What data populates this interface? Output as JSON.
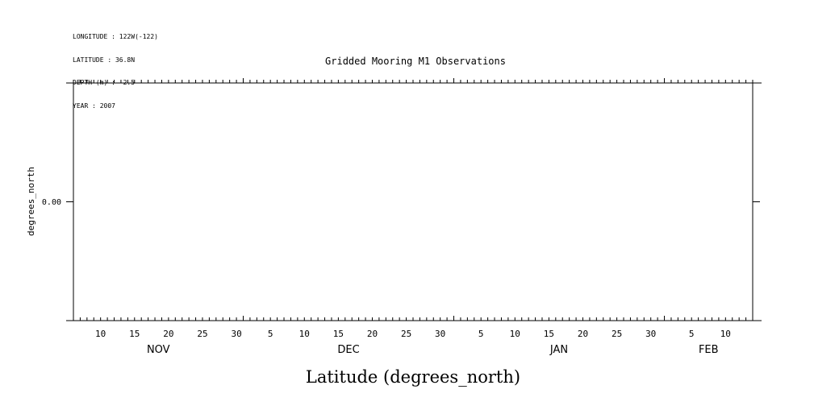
{
  "metadata_lines": {
    "longitude": "LONGITUDE : 122W(-122)",
    "latitude": "LATITUDE : 36.8N",
    "depth": "DEPTH (m) : -2.5",
    "year": "YEAR : 2007"
  },
  "chart_data": {
    "type": "line",
    "title": "Gridded Mooring M1 Observations",
    "ylabel": "degrees_north",
    "xlabel": "Latitude (degrees_north)",
    "y_tick_labels": [
      "0.00"
    ],
    "x_range": [
      "2007-11-06",
      "2008-02-14"
    ],
    "x_day_labels": [
      {
        "date": "2007-11-10",
        "label": "10"
      },
      {
        "date": "2007-11-15",
        "label": "15"
      },
      {
        "date": "2007-11-20",
        "label": "20"
      },
      {
        "date": "2007-11-25",
        "label": "25"
      },
      {
        "date": "2007-11-30",
        "label": "30"
      },
      {
        "date": "2007-12-05",
        "label": "5"
      },
      {
        "date": "2007-12-10",
        "label": "10"
      },
      {
        "date": "2007-12-15",
        "label": "15"
      },
      {
        "date": "2007-12-20",
        "label": "20"
      },
      {
        "date": "2007-12-25",
        "label": "25"
      },
      {
        "date": "2007-12-30",
        "label": "30"
      },
      {
        "date": "2008-01-05",
        "label": "5"
      },
      {
        "date": "2008-01-10",
        "label": "10"
      },
      {
        "date": "2008-01-15",
        "label": "15"
      },
      {
        "date": "2008-01-20",
        "label": "20"
      },
      {
        "date": "2008-01-25",
        "label": "25"
      },
      {
        "date": "2008-01-30",
        "label": "30"
      },
      {
        "date": "2008-02-05",
        "label": "5"
      },
      {
        "date": "2008-02-10",
        "label": "10"
      }
    ],
    "x_month_labels": [
      {
        "month": "2007-11",
        "label": "NOV"
      },
      {
        "month": "2007-12",
        "label": "DEC"
      },
      {
        "month": "2008-01",
        "label": "JAN"
      },
      {
        "month": "2008-02",
        "label": "FEB"
      }
    ],
    "series": [],
    "grid": false
  }
}
